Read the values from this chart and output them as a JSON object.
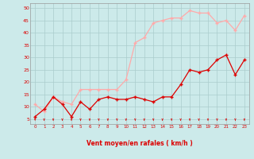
{
  "x": [
    0,
    1,
    2,
    3,
    4,
    5,
    6,
    7,
    8,
    9,
    10,
    11,
    12,
    13,
    14,
    15,
    16,
    17,
    18,
    19,
    20,
    21,
    22,
    23
  ],
  "wind_avg": [
    6,
    9,
    14,
    11,
    6,
    12,
    9,
    13,
    14,
    13,
    13,
    14,
    13,
    12,
    14,
    14,
    19,
    25,
    24,
    25,
    29,
    31,
    23,
    29
  ],
  "wind_gust": [
    11,
    8,
    14,
    12,
    11,
    17,
    17,
    17,
    17,
    17,
    21,
    36,
    38,
    44,
    45,
    46,
    46,
    49,
    48,
    48,
    44,
    45,
    41,
    47
  ],
  "avg_color": "#dd0000",
  "gust_color": "#ffaaaa",
  "bg_color": "#cceaea",
  "grid_color": "#aacccc",
  "xlabel": "Vent moyen/en rafales ( km/h )",
  "tick_color": "#dd0000",
  "ylim": [
    3,
    52
  ],
  "yticks": [
    5,
    10,
    15,
    20,
    25,
    30,
    35,
    40,
    45,
    50
  ],
  "xlim": [
    -0.5,
    23.5
  ],
  "figsize": [
    3.2,
    2.0
  ],
  "dpi": 100
}
